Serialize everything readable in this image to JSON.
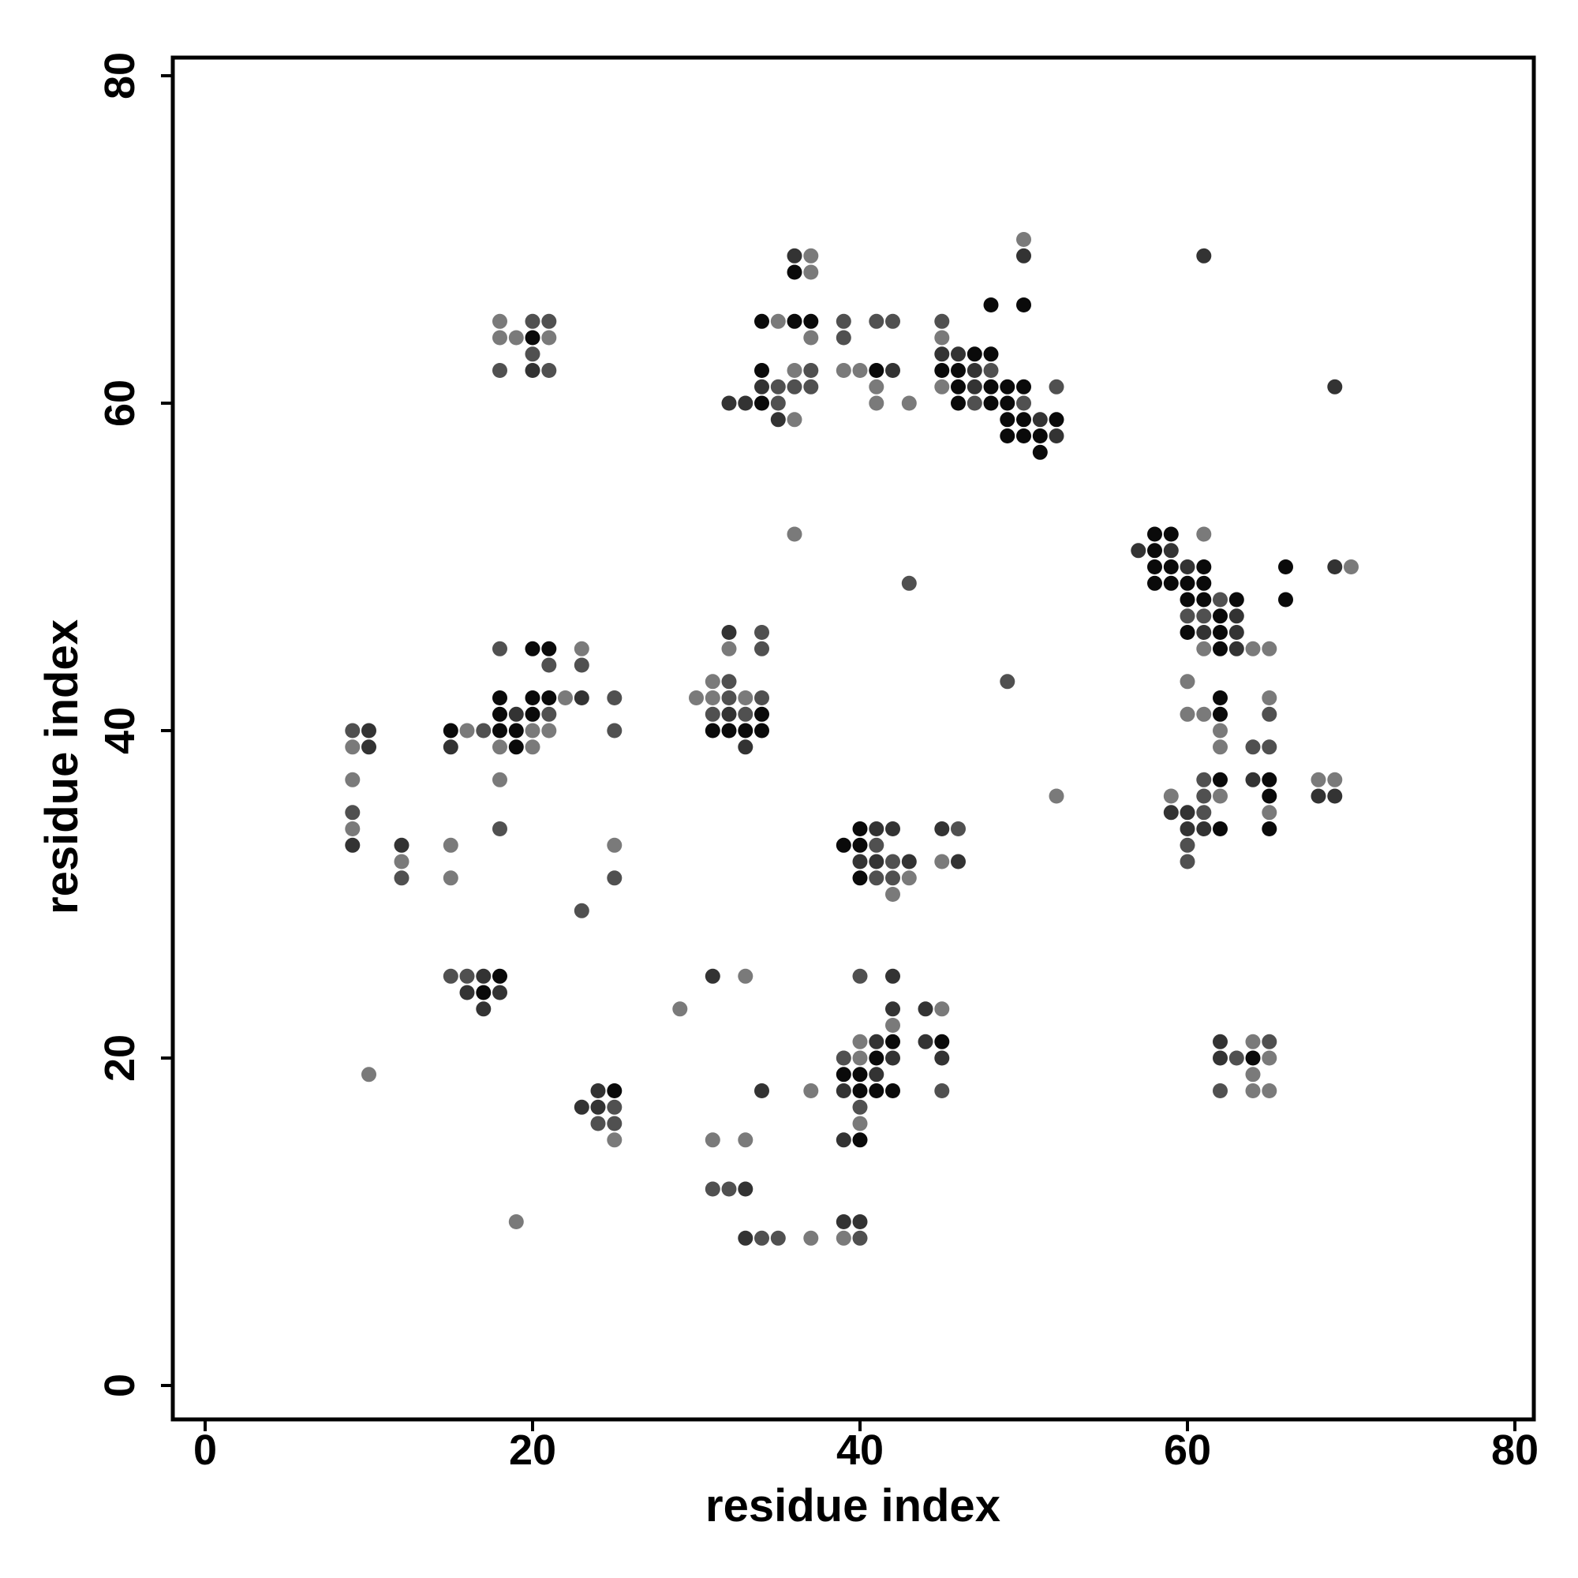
{
  "chart_data": {
    "type": "scatter",
    "xlabel": "residue index",
    "ylabel": "residue index",
    "xlim": [
      -2,
      81.3
    ],
    "ylim": [
      -2,
      81.3
    ],
    "xticks": [
      0,
      20,
      40,
      60,
      80
    ],
    "yticks": [
      0,
      20,
      40,
      60,
      80
    ],
    "grid": false,
    "shade_colors": {
      "1": "#0a0a0a",
      "2": "#333333",
      "3": "#505050",
      "4": "#7a7a7a"
    },
    "points": [
      [
        36,
        69,
        2
      ],
      [
        37,
        69,
        4
      ],
      [
        36,
        68,
        1
      ],
      [
        37,
        68,
        4
      ],
      [
        50,
        70,
        4
      ],
      [
        50,
        69,
        2
      ],
      [
        61,
        69,
        2
      ],
      [
        48,
        66,
        1
      ],
      [
        50,
        66,
        1
      ],
      [
        18,
        65,
        4
      ],
      [
        20,
        65,
        3
      ],
      [
        21,
        65,
        3
      ],
      [
        18,
        64,
        4
      ],
      [
        19,
        64,
        4
      ],
      [
        20,
        64,
        1
      ],
      [
        21,
        64,
        4
      ],
      [
        20,
        63,
        3
      ],
      [
        18,
        62,
        3
      ],
      [
        20,
        62,
        2
      ],
      [
        21,
        62,
        3
      ],
      [
        34,
        65,
        1
      ],
      [
        35,
        65,
        4
      ],
      [
        36,
        65,
        1
      ],
      [
        37,
        65,
        1
      ],
      [
        37,
        64,
        4
      ],
      [
        39,
        65,
        3
      ],
      [
        41,
        65,
        3
      ],
      [
        42,
        65,
        3
      ],
      [
        39,
        64,
        3
      ],
      [
        34,
        62,
        1
      ],
      [
        36,
        62,
        4
      ],
      [
        37,
        62,
        3
      ],
      [
        39,
        62,
        4
      ],
      [
        40,
        62,
        4
      ],
      [
        41,
        62,
        1
      ],
      [
        42,
        62,
        2
      ],
      [
        34,
        61,
        2
      ],
      [
        35,
        61,
        3
      ],
      [
        36,
        61,
        3
      ],
      [
        37,
        61,
        3
      ],
      [
        41,
        61,
        4
      ],
      [
        32,
        60,
        2
      ],
      [
        33,
        60,
        2
      ],
      [
        34,
        60,
        1
      ],
      [
        35,
        60,
        3
      ],
      [
        41,
        60,
        4
      ],
      [
        43,
        60,
        4
      ],
      [
        35,
        59,
        2
      ],
      [
        36,
        59,
        4
      ],
      [
        45,
        65,
        3
      ],
      [
        45,
        64,
        4
      ],
      [
        45,
        63,
        2
      ],
      [
        46,
        63,
        2
      ],
      [
        47,
        63,
        1
      ],
      [
        48,
        63,
        1
      ],
      [
        45,
        62,
        1
      ],
      [
        46,
        62,
        1
      ],
      [
        47,
        62,
        2
      ],
      [
        48,
        62,
        3
      ],
      [
        45,
        61,
        4
      ],
      [
        46,
        61,
        1
      ],
      [
        47,
        61,
        2
      ],
      [
        48,
        61,
        1
      ],
      [
        49,
        61,
        1
      ],
      [
        50,
        61,
        1
      ],
      [
        52,
        61,
        3
      ],
      [
        46,
        60,
        1
      ],
      [
        47,
        60,
        3
      ],
      [
        48,
        60,
        1
      ],
      [
        49,
        60,
        1
      ],
      [
        50,
        60,
        3
      ],
      [
        49,
        59,
        1
      ],
      [
        50,
        59,
        1
      ],
      [
        51,
        59,
        2
      ],
      [
        52,
        59,
        1
      ],
      [
        49,
        58,
        1
      ],
      [
        50,
        58,
        1
      ],
      [
        51,
        58,
        1
      ],
      [
        52,
        58,
        2
      ],
      [
        51,
        57,
        1
      ],
      [
        69,
        61,
        2
      ],
      [
        36,
        52,
        4
      ],
      [
        43,
        49,
        3
      ],
      [
        57,
        51,
        2
      ],
      [
        58,
        52,
        1
      ],
      [
        59,
        52,
        1
      ],
      [
        61,
        52,
        4
      ],
      [
        58,
        51,
        1
      ],
      [
        59,
        51,
        2
      ],
      [
        58,
        50,
        1
      ],
      [
        59,
        50,
        1
      ],
      [
        60,
        50,
        2
      ],
      [
        61,
        50,
        1
      ],
      [
        66,
        50,
        1
      ],
      [
        69,
        50,
        2
      ],
      [
        70,
        50,
        4
      ],
      [
        58,
        49,
        1
      ],
      [
        59,
        49,
        1
      ],
      [
        60,
        49,
        1
      ],
      [
        61,
        49,
        1
      ],
      [
        60,
        48,
        1
      ],
      [
        61,
        48,
        1
      ],
      [
        62,
        48,
        3
      ],
      [
        63,
        48,
        1
      ],
      [
        66,
        48,
        1
      ],
      [
        60,
        47,
        3
      ],
      [
        61,
        47,
        3
      ],
      [
        62,
        47,
        1
      ],
      [
        63,
        47,
        2
      ],
      [
        60,
        46,
        1
      ],
      [
        61,
        46,
        2
      ],
      [
        62,
        46,
        1
      ],
      [
        63,
        46,
        2
      ],
      [
        61,
        45,
        4
      ],
      [
        62,
        45,
        1
      ],
      [
        63,
        45,
        2
      ],
      [
        64,
        45,
        4
      ],
      [
        65,
        45,
        4
      ],
      [
        60,
        43,
        4
      ],
      [
        49,
        43,
        3
      ],
      [
        62,
        42,
        1
      ],
      [
        65,
        42,
        4
      ],
      [
        60,
        41,
        4
      ],
      [
        61,
        41,
        4
      ],
      [
        62,
        41,
        1
      ],
      [
        65,
        41,
        3
      ],
      [
        62,
        40,
        4
      ],
      [
        62,
        39,
        4
      ],
      [
        64,
        39,
        3
      ],
      [
        65,
        39,
        3
      ],
      [
        61,
        37,
        3
      ],
      [
        62,
        37,
        1
      ],
      [
        64,
        37,
        2
      ],
      [
        65,
        37,
        1
      ],
      [
        68,
        37,
        4
      ],
      [
        69,
        37,
        4
      ],
      [
        59,
        36,
        4
      ],
      [
        61,
        36,
        3
      ],
      [
        62,
        36,
        4
      ],
      [
        65,
        36,
        1
      ],
      [
        68,
        36,
        2
      ],
      [
        69,
        36,
        2
      ],
      [
        59,
        35,
        2
      ],
      [
        60,
        35,
        2
      ],
      [
        61,
        35,
        3
      ],
      [
        65,
        35,
        4
      ],
      [
        60,
        34,
        2
      ],
      [
        61,
        34,
        2
      ],
      [
        62,
        34,
        1
      ],
      [
        65,
        34,
        1
      ],
      [
        60,
        33,
        3
      ],
      [
        60,
        32,
        3
      ],
      [
        52,
        36,
        4
      ],
      [
        18,
        45,
        3
      ],
      [
        20,
        45,
        1
      ],
      [
        21,
        45,
        1
      ],
      [
        23,
        45,
        4
      ],
      [
        21,
        44,
        3
      ],
      [
        23,
        44,
        3
      ],
      [
        18,
        42,
        1
      ],
      [
        20,
        42,
        1
      ],
      [
        21,
        42,
        1
      ],
      [
        22,
        42,
        4
      ],
      [
        23,
        42,
        2
      ],
      [
        25,
        42,
        3
      ],
      [
        18,
        41,
        1
      ],
      [
        19,
        41,
        2
      ],
      [
        20,
        41,
        1
      ],
      [
        21,
        41,
        3
      ],
      [
        15,
        40,
        1
      ],
      [
        16,
        40,
        4
      ],
      [
        17,
        40,
        3
      ],
      [
        18,
        40,
        1
      ],
      [
        19,
        40,
        1
      ],
      [
        20,
        40,
        4
      ],
      [
        21,
        40,
        4
      ],
      [
        25,
        40,
        3
      ],
      [
        15,
        39,
        2
      ],
      [
        18,
        39,
        4
      ],
      [
        19,
        39,
        1
      ],
      [
        20,
        39,
        4
      ],
      [
        18,
        37,
        4
      ],
      [
        18,
        34,
        3
      ],
      [
        25,
        33,
        4
      ],
      [
        25,
        31,
        3
      ],
      [
        23,
        29,
        3
      ],
      [
        9,
        40,
        3
      ],
      [
        10,
        40,
        2
      ],
      [
        9,
        39,
        4
      ],
      [
        10,
        39,
        2
      ],
      [
        9,
        37,
        4
      ],
      [
        9,
        35,
        3
      ],
      [
        9,
        34,
        4
      ],
      [
        9,
        33,
        2
      ],
      [
        12,
        33,
        2
      ],
      [
        12,
        32,
        4
      ],
      [
        12,
        31,
        3
      ],
      [
        15,
        33,
        4
      ],
      [
        15,
        31,
        4
      ],
      [
        32,
        46,
        2
      ],
      [
        34,
        46,
        3
      ],
      [
        32,
        45,
        4
      ],
      [
        34,
        45,
        3
      ],
      [
        31,
        43,
        4
      ],
      [
        32,
        43,
        3
      ],
      [
        30,
        42,
        4
      ],
      [
        31,
        42,
        4
      ],
      [
        32,
        42,
        3
      ],
      [
        33,
        42,
        4
      ],
      [
        34,
        42,
        3
      ],
      [
        31,
        41,
        3
      ],
      [
        32,
        41,
        2
      ],
      [
        33,
        41,
        3
      ],
      [
        34,
        41,
        1
      ],
      [
        31,
        40,
        1
      ],
      [
        32,
        40,
        1
      ],
      [
        33,
        40,
        1
      ],
      [
        34,
        40,
        1
      ],
      [
        33,
        39,
        2
      ],
      [
        39,
        33,
        1
      ],
      [
        40,
        34,
        1
      ],
      [
        41,
        34,
        2
      ],
      [
        42,
        34,
        2
      ],
      [
        40,
        33,
        1
      ],
      [
        41,
        33,
        3
      ],
      [
        40,
        32,
        2
      ],
      [
        41,
        32,
        2
      ],
      [
        42,
        32,
        3
      ],
      [
        43,
        32,
        2
      ],
      [
        40,
        31,
        1
      ],
      [
        41,
        31,
        3
      ],
      [
        42,
        31,
        3
      ],
      [
        43,
        31,
        4
      ],
      [
        42,
        30,
        4
      ],
      [
        45,
        34,
        2
      ],
      [
        46,
        34,
        3
      ],
      [
        45,
        32,
        4
      ],
      [
        46,
        32,
        2
      ],
      [
        15,
        25,
        3
      ],
      [
        16,
        25,
        3
      ],
      [
        17,
        25,
        2
      ],
      [
        18,
        25,
        1
      ],
      [
        16,
        24,
        2
      ],
      [
        17,
        24,
        1
      ],
      [
        18,
        24,
        2
      ],
      [
        17,
        23,
        2
      ],
      [
        31,
        25,
        2
      ],
      [
        33,
        25,
        4
      ],
      [
        29,
        23,
        4
      ],
      [
        40,
        25,
        3
      ],
      [
        42,
        25,
        2
      ],
      [
        42,
        23,
        2
      ],
      [
        44,
        23,
        2
      ],
      [
        45,
        23,
        4
      ],
      [
        42,
        22,
        4
      ],
      [
        40,
        21,
        4
      ],
      [
        41,
        21,
        2
      ],
      [
        42,
        21,
        1
      ],
      [
        44,
        21,
        2
      ],
      [
        45,
        21,
        1
      ],
      [
        39,
        20,
        3
      ],
      [
        40,
        20,
        4
      ],
      [
        41,
        20,
        1
      ],
      [
        42,
        20,
        2
      ],
      [
        45,
        20,
        2
      ],
      [
        39,
        19,
        1
      ],
      [
        40,
        19,
        1
      ],
      [
        41,
        19,
        2
      ],
      [
        39,
        18,
        2
      ],
      [
        40,
        18,
        1
      ],
      [
        41,
        18,
        1
      ],
      [
        42,
        18,
        1
      ],
      [
        45,
        18,
        3
      ],
      [
        40,
        17,
        3
      ],
      [
        40,
        16,
        4
      ],
      [
        39,
        15,
        2
      ],
      [
        40,
        15,
        1
      ],
      [
        10,
        19,
        4
      ],
      [
        19,
        10,
        4
      ],
      [
        23,
        17,
        2
      ],
      [
        24,
        18,
        2
      ],
      [
        25,
        18,
        1
      ],
      [
        24,
        17,
        2
      ],
      [
        25,
        17,
        3
      ],
      [
        24,
        16,
        3
      ],
      [
        25,
        16,
        3
      ],
      [
        25,
        15,
        4
      ],
      [
        31,
        15,
        4
      ],
      [
        33,
        15,
        4
      ],
      [
        31,
        12,
        3
      ],
      [
        32,
        12,
        3
      ],
      [
        33,
        12,
        2
      ],
      [
        34,
        18,
        2
      ],
      [
        37,
        18,
        4
      ],
      [
        33,
        9,
        2
      ],
      [
        34,
        9,
        3
      ],
      [
        35,
        9,
        3
      ],
      [
        37,
        9,
        4
      ],
      [
        39,
        10,
        2
      ],
      [
        40,
        10,
        2
      ],
      [
        39,
        9,
        4
      ],
      [
        40,
        9,
        3
      ],
      [
        62,
        21,
        2
      ],
      [
        64,
        21,
        4
      ],
      [
        65,
        21,
        3
      ],
      [
        62,
        20,
        2
      ],
      [
        63,
        20,
        3
      ],
      [
        64,
        20,
        1
      ],
      [
        65,
        20,
        4
      ],
      [
        64,
        19,
        4
      ],
      [
        62,
        18,
        3
      ],
      [
        64,
        18,
        4
      ],
      [
        65,
        18,
        4
      ]
    ]
  }
}
